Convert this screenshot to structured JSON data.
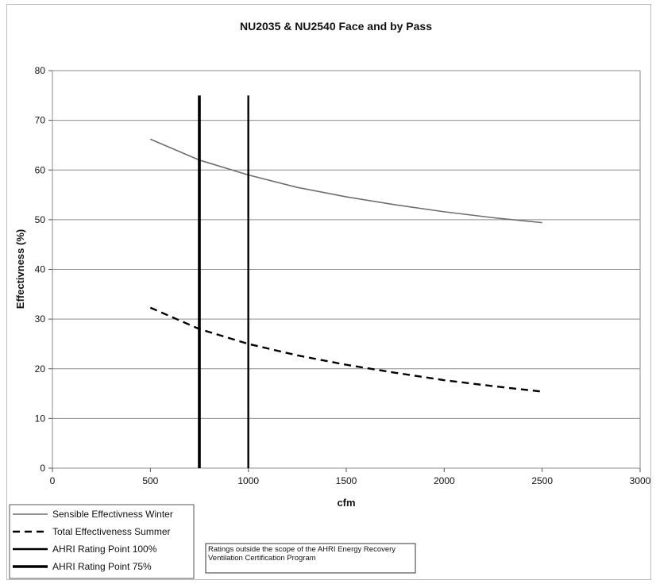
{
  "chart_data": {
    "type": "line",
    "title": "NU2035 & NU2540 Face and by Pass",
    "xlabel": "cfm",
    "ylabel": "Effectivness (%)",
    "xlim": [
      0,
      3000
    ],
    "ylim": [
      0,
      80
    ],
    "xticks": [
      0,
      500,
      1000,
      1500,
      2000,
      2500,
      3000
    ],
    "yticks": [
      0,
      10,
      20,
      30,
      40,
      50,
      60,
      70,
      80
    ],
    "grid": "horizontal",
    "legend_position": "bottom-left",
    "series": [
      {
        "name": "Sensible Effectivness Winter",
        "style": "solid-thin",
        "color": "#6e6e6e",
        "x": [
          500,
          750,
          1000,
          1250,
          1500,
          1750,
          2000,
          2250,
          2500
        ],
        "y": [
          66.2,
          62.0,
          59.0,
          56.5,
          54.6,
          53.0,
          51.6,
          50.4,
          49.4
        ]
      },
      {
        "name": "Total Effectiveness Summer",
        "style": "dashed",
        "color": "#000000",
        "x": [
          500,
          750,
          1000,
          1250,
          1500,
          1750,
          2000,
          2250,
          2500
        ],
        "y": [
          32.3,
          28.0,
          25.0,
          22.7,
          20.8,
          19.2,
          17.7,
          16.5,
          15.4
        ]
      },
      {
        "name": "AHRI Rating Point 100%",
        "style": "vertical-medium",
        "color": "#000000",
        "x": [
          1000,
          1000
        ],
        "y": [
          0,
          75
        ]
      },
      {
        "name": "AHRI Rating Point 75%",
        "style": "vertical-thick",
        "color": "#000000",
        "x": [
          750,
          750
        ],
        "y": [
          0,
          75
        ]
      }
    ],
    "annotation": "Ratings outside the scope of the AHRI Energy Recovery Ventilation Certification Program"
  }
}
